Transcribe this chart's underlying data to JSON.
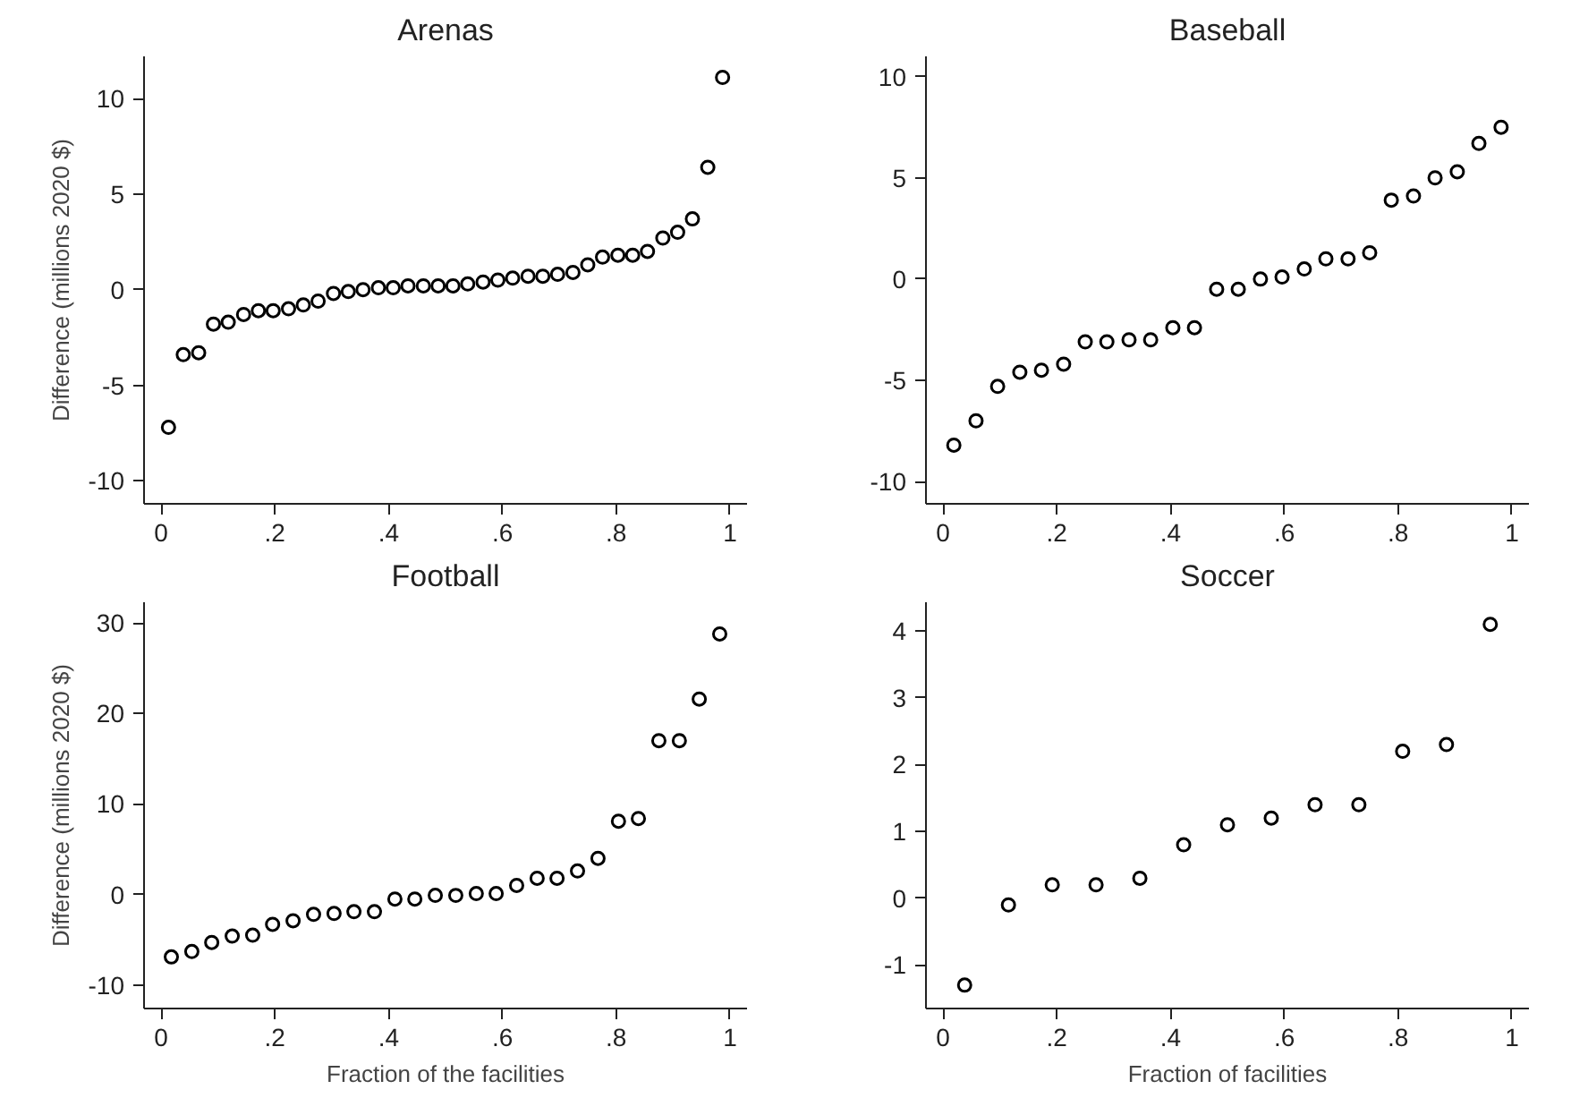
{
  "chart_data": [
    {
      "type": "scatter",
      "title": "Arenas",
      "ylabel": "Difference (millions 2020 $)",
      "marker": "circle",
      "grid": false,
      "xlim": [
        -0.03,
        1.03
      ],
      "ylim": [
        -11.2,
        12.2
      ],
      "xticks": [
        {
          "value": 0,
          "label": "0"
        },
        {
          "value": 0.2,
          "label": ".2"
        },
        {
          "value": 0.4,
          "label": ".4"
        },
        {
          "value": 0.6,
          "label": ".6"
        },
        {
          "value": 0.8,
          "label": ".8"
        },
        {
          "value": 1,
          "label": "1"
        }
      ],
      "yticks": [
        -10,
        -5,
        0,
        5,
        10
      ],
      "series": [
        {
          "color": "#000000",
          "x": [
            0.013,
            0.039,
            0.066,
            0.092,
            0.118,
            0.145,
            0.171,
            0.197,
            0.224,
            0.25,
            0.276,
            0.303,
            0.329,
            0.355,
            0.382,
            0.408,
            0.434,
            0.461,
            0.487,
            0.513,
            0.539,
            0.566,
            0.592,
            0.618,
            0.645,
            0.671,
            0.697,
            0.724,
            0.75,
            0.776,
            0.803,
            0.829,
            0.855,
            0.882,
            0.908,
            0.934,
            0.961,
            0.987
          ],
          "values": [
            -7.2,
            -3.4,
            -3.3,
            -1.8,
            -1.7,
            -1.3,
            -1.1,
            -1.1,
            -1.0,
            -0.8,
            -0.6,
            -0.2,
            -0.1,
            0.0,
            0.1,
            0.1,
            0.2,
            0.2,
            0.2,
            0.2,
            0.3,
            0.4,
            0.5,
            0.6,
            0.7,
            0.7,
            0.8,
            0.9,
            1.3,
            1.7,
            1.8,
            1.8,
            2.0,
            2.7,
            3.0,
            3.7,
            6.4,
            11.1
          ]
        }
      ]
    },
    {
      "type": "scatter",
      "title": "Baseball",
      "marker": "circle",
      "grid": false,
      "xlim": [
        -0.03,
        1.03
      ],
      "ylim": [
        -11.1,
        11
      ],
      "xticks": [
        {
          "value": 0,
          "label": "0"
        },
        {
          "value": 0.2,
          "label": ".2"
        },
        {
          "value": 0.4,
          "label": ".4"
        },
        {
          "value": 0.6,
          "label": ".6"
        },
        {
          "value": 0.8,
          "label": ".8"
        },
        {
          "value": 1,
          "label": "1"
        }
      ],
      "yticks": [
        -10,
        -5,
        0,
        5,
        10
      ],
      "series": [
        {
          "color": "#000000",
          "x": [
            0.019,
            0.058,
            0.096,
            0.135,
            0.173,
            0.212,
            0.25,
            0.288,
            0.327,
            0.365,
            0.404,
            0.442,
            0.481,
            0.519,
            0.558,
            0.596,
            0.635,
            0.673,
            0.712,
            0.75,
            0.788,
            0.827,
            0.865,
            0.904,
            0.942,
            0.981
          ],
          "values": [
            -8.2,
            -7.0,
            -5.3,
            -4.6,
            -4.5,
            -4.2,
            -3.1,
            -3.1,
            -3.0,
            -3.0,
            -2.4,
            -2.4,
            -0.5,
            -0.5,
            0.0,
            0.1,
            0.5,
            1.0,
            1.0,
            1.3,
            3.9,
            4.1,
            5.0,
            5.3,
            6.7,
            7.5
          ]
        }
      ]
    },
    {
      "type": "scatter",
      "title": "Football",
      "ylabel": "Difference (millions 2020 $)",
      "xlabel": "Fraction of the facilities",
      "marker": "circle",
      "grid": false,
      "xlim": [
        -0.03,
        1.03
      ],
      "ylim": [
        -12.6,
        32.3
      ],
      "xticks": [
        {
          "value": 0,
          "label": "0"
        },
        {
          "value": 0.2,
          "label": ".2"
        },
        {
          "value": 0.4,
          "label": ".4"
        },
        {
          "value": 0.6,
          "label": ".6"
        },
        {
          "value": 0.8,
          "label": ".8"
        },
        {
          "value": 1,
          "label": "1"
        }
      ],
      "yticks": [
        -10,
        0,
        10,
        20,
        30
      ],
      "series": [
        {
          "color": "#000000",
          "x": [
            0.018,
            0.054,
            0.089,
            0.125,
            0.161,
            0.196,
            0.232,
            0.268,
            0.304,
            0.339,
            0.375,
            0.411,
            0.446,
            0.482,
            0.518,
            0.554,
            0.589,
            0.625,
            0.661,
            0.696,
            0.732,
            0.768,
            0.804,
            0.839,
            0.875,
            0.911,
            0.946,
            0.982
          ],
          "values": [
            -6.9,
            -6.3,
            -5.3,
            -4.6,
            -4.5,
            -3.3,
            -2.9,
            -2.2,
            -2.1,
            -1.9,
            -1.9,
            -0.5,
            -0.5,
            -0.1,
            -0.1,
            0.1,
            0.1,
            1.0,
            1.8,
            1.8,
            2.6,
            4.0,
            8.1,
            8.4,
            17.0,
            17.0,
            21.6,
            28.8
          ]
        }
      ]
    },
    {
      "type": "scatter",
      "title": "Soccer",
      "xlabel": "Fraction of facilities",
      "marker": "circle",
      "grid": false,
      "xlim": [
        -0.03,
        1.03
      ],
      "ylim": [
        -1.65,
        4.43
      ],
      "xticks": [
        {
          "value": 0,
          "label": "0"
        },
        {
          "value": 0.2,
          "label": ".2"
        },
        {
          "value": 0.4,
          "label": ".4"
        },
        {
          "value": 0.6,
          "label": ".6"
        },
        {
          "value": 0.8,
          "label": ".8"
        },
        {
          "value": 1,
          "label": "1"
        }
      ],
      "yticks": [
        -1,
        0,
        1,
        2,
        3,
        4
      ],
      "series": [
        {
          "color": "#000000",
          "x": [
            0.038,
            0.115,
            0.192,
            0.269,
            0.346,
            0.423,
            0.5,
            0.577,
            0.654,
            0.731,
            0.808,
            0.885,
            0.962
          ],
          "values": [
            -1.3,
            -0.1,
            0.2,
            0.2,
            0.3,
            0.8,
            1.1,
            1.2,
            1.4,
            1.4,
            2.2,
            2.3,
            4.1
          ]
        }
      ]
    }
  ]
}
